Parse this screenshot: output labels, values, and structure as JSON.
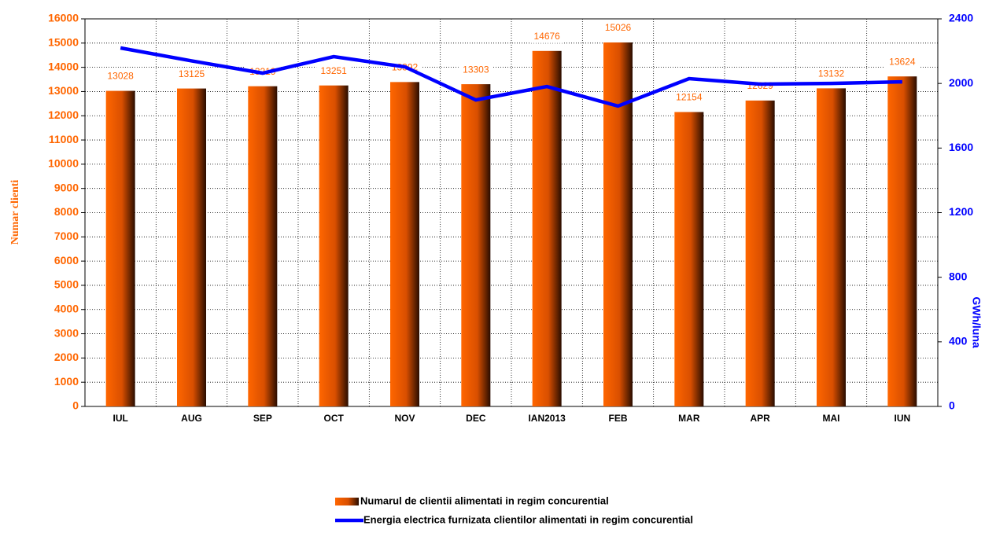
{
  "chart_data": {
    "type": "bar",
    "categories": [
      "IUL",
      "AUG",
      "SEP",
      "OCT",
      "NOV",
      "DEC",
      "IAN2013",
      "FEB",
      "MAR",
      "APR",
      "MAI",
      "IUN"
    ],
    "series": [
      {
        "name": "Numarul de clientii alimentati in regim concurential",
        "type": "bar",
        "color": "#ff6600",
        "values": [
          13028,
          13125,
          13219,
          13251,
          13392,
          13303,
          14676,
          15026,
          12154,
          12629,
          13132,
          13624
        ]
      },
      {
        "name": "Energia electrica furnizata clientilor alimentati in regim concurential",
        "type": "line",
        "axis": "y2",
        "color": "#0000ff",
        "values": [
          2220,
          2140,
          2064,
          2166,
          2103,
          1898,
          1981,
          1860,
          2030,
          1996,
          2000,
          2010
        ]
      }
    ],
    "y_label": "Numar clienti",
    "y2_label": "GWh/luna",
    "ylim": [
      0,
      16000
    ],
    "yticks": [
      0,
      1000,
      2000,
      3000,
      4000,
      5000,
      6000,
      7000,
      8000,
      9000,
      10000,
      11000,
      12000,
      13000,
      14000,
      15000,
      16000
    ],
    "y2lim": [
      0,
      2400
    ],
    "y2ticks": [
      0,
      400,
      800,
      1200,
      1600,
      2000,
      2400
    ],
    "grid": true,
    "legend": "bottom"
  }
}
